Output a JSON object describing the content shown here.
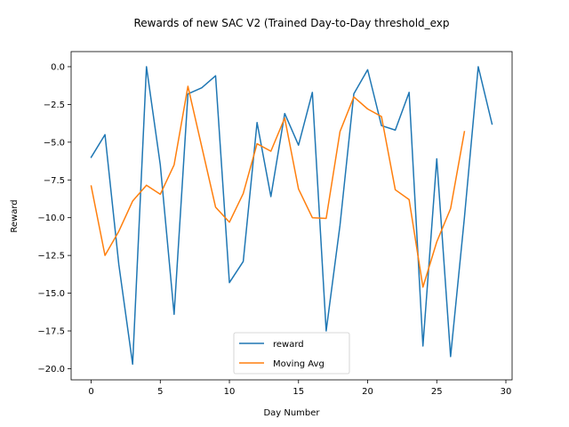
{
  "chart_data": {
    "type": "line",
    "title": "Rewards of new SAC V2 (Trained Day-to-Day threshold_exp",
    "xlabel": "Day Number",
    "ylabel": "Reward",
    "xlim": [
      -1.45,
      30.45
    ],
    "ylim": [
      -20.74,
      1.0
    ],
    "xticks": [
      0,
      5,
      10,
      15,
      20,
      25,
      30
    ],
    "xtick_labels": [
      "0",
      "5",
      "10",
      "15",
      "20",
      "25",
      "30"
    ],
    "yticks": [
      0.0,
      -2.5,
      -5.0,
      -7.5,
      -10.0,
      -12.5,
      -15.0,
      -17.5,
      -20.0
    ],
    "ytick_labels": [
      "0.0",
      "−2.5",
      "−5.0",
      "−7.5",
      "−10.0",
      "−12.5",
      "−15.0",
      "−17.5",
      "−20.0"
    ],
    "grid": false,
    "legend_position": "bottom-center",
    "series": [
      {
        "name": "reward",
        "color": "#1f77b4",
        "x": [
          0,
          1,
          2,
          3,
          4,
          5,
          6,
          7,
          8,
          9,
          10,
          11,
          12,
          13,
          14,
          15,
          16,
          17,
          18,
          19,
          20,
          21,
          22,
          23,
          24,
          25,
          26,
          27,
          28,
          29
        ],
        "values": [
          -6.0,
          -4.5,
          -13.1,
          -19.7,
          0.0,
          -6.5,
          -16.4,
          -1.8,
          -1.4,
          -0.6,
          -14.3,
          -12.9,
          -3.7,
          -8.6,
          -3.1,
          -5.2,
          -1.7,
          -17.5,
          -10.5,
          -1.8,
          -0.2,
          -3.9,
          -4.2,
          -1.7,
          -18.5,
          -6.1,
          -19.2,
          -10.0,
          0.0,
          -3.8
        ]
      },
      {
        "name": "Moving Avg",
        "color": "#ff7f0e",
        "x": [
          0,
          1,
          2,
          3,
          4,
          5,
          6,
          7,
          8,
          9,
          10,
          11,
          12,
          13,
          14,
          15,
          16,
          17,
          18,
          19,
          20,
          21,
          22,
          23,
          24,
          25,
          26,
          27
        ],
        "values": [
          -7.9,
          -12.5,
          -10.9,
          -8.9,
          -7.85,
          -8.45,
          -6.5,
          -1.3,
          -5.3,
          -9.3,
          -10.3,
          -8.4,
          -5.1,
          -5.6,
          -3.4,
          -8.1,
          -10.0,
          -10.05,
          -4.3,
          -2.0,
          -2.8,
          -3.3,
          -8.15,
          -8.8,
          -14.6,
          -11.6,
          -9.4,
          -4.3
        ]
      }
    ]
  }
}
